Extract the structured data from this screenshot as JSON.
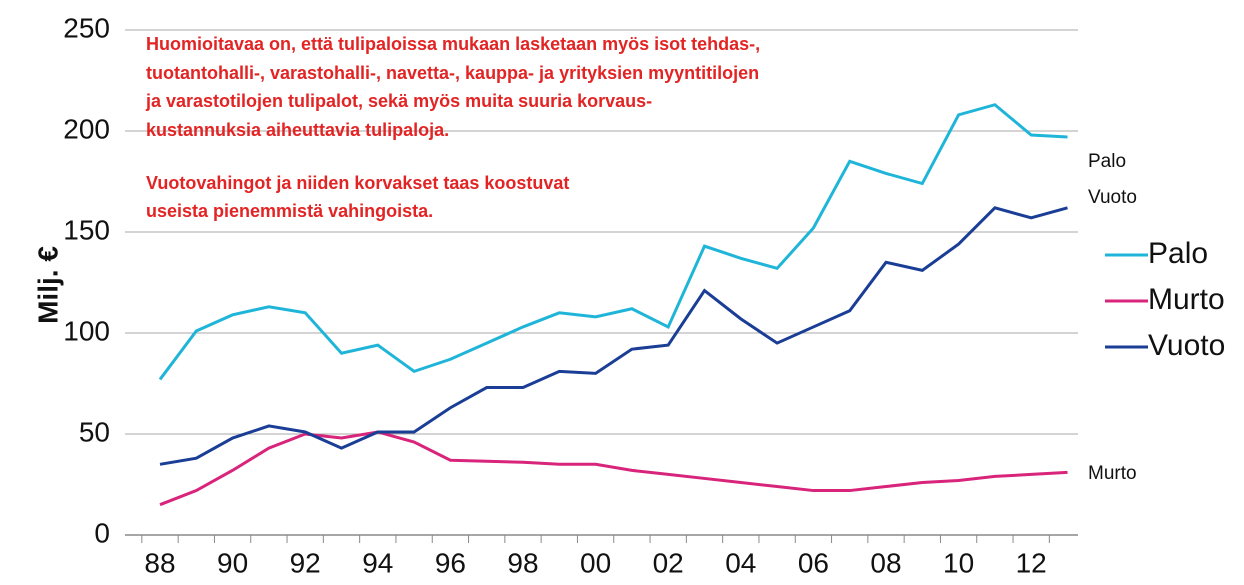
{
  "chart_data": {
    "type": "line",
    "y_label": "Milj. €",
    "categories": [
      "88",
      null,
      "90",
      null,
      "92",
      null,
      "94",
      null,
      "96",
      null,
      "98",
      null,
      "00",
      null,
      "02",
      null,
      "04",
      null,
      "06",
      null,
      "08",
      null,
      "10",
      null,
      "12",
      null
    ],
    "series": [
      {
        "name": "Palo",
        "color": "#1fb5d9",
        "values": [
          77,
          101,
          109,
          113,
          110,
          90,
          94,
          81,
          87,
          95,
          103,
          110,
          108,
          112,
          103,
          143,
          137,
          132,
          152,
          185,
          179,
          174,
          208,
          213,
          198,
          197
        ]
      },
      {
        "name": "Murto",
        "color": "#d8247a",
        "values": [
          15,
          22,
          32,
          43,
          50,
          48,
          51,
          46,
          37,
          36.5,
          36,
          35,
          35,
          32,
          30,
          28,
          26,
          24,
          22,
          22,
          24,
          26,
          27,
          29,
          30,
          31
        ]
      },
      {
        "name": "Vuoto",
        "color": "#1a3d96",
        "values": [
          35,
          38,
          48,
          54,
          51,
          43,
          51,
          51,
          63,
          73,
          73,
          81,
          80,
          92,
          94,
          121,
          107,
          95,
          103,
          111,
          135,
          131,
          144,
          162,
          157,
          162
        ]
      }
    ],
    "ylim": [
      0,
      250
    ],
    "yticks": [
      0,
      50,
      100,
      150,
      200,
      250
    ],
    "grid": true,
    "legend": "right",
    "annotations": [
      "Huomioitavaa on, että tulipaloissa mukaan lasketaan myös isot tehdas-,",
      "tuotantohalli-, varastohalli-, navetta-, kauppa- ja yrityksien myyntitilojen",
      "ja varastotilojen tulipalot, sekä myös muita suuria korvaus-",
      "kustannuksia aiheuttavia tulipaloja.",
      "Vuotovahingot ja niiden korvakset taas koostuvat",
      "useista pienemmistä vahingoista."
    ],
    "end_labels": [
      "Palo",
      "Vuoto",
      "Murto"
    ]
  }
}
